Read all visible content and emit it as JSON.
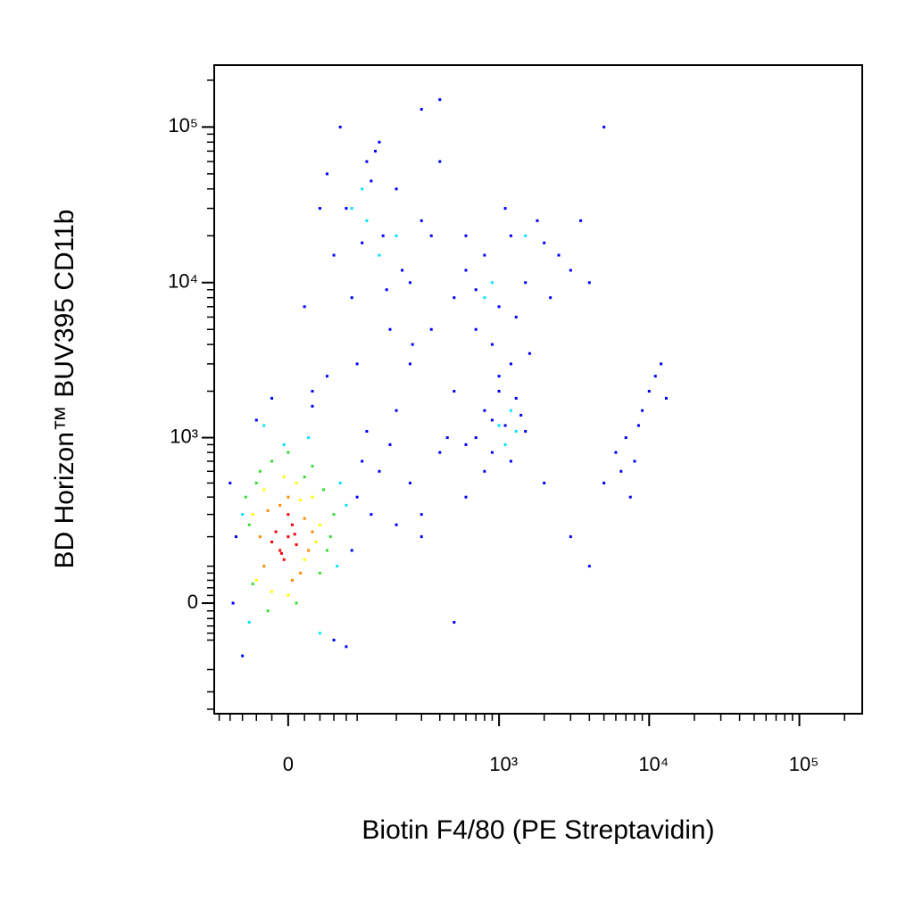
{
  "chart_data": {
    "type": "scatter",
    "xlabel": "Biotin F4/80 (PE Streptavidin)",
    "ylabel": "BD Horizon™ BUV395 CD11b",
    "xscale": "biexponential",
    "yscale": "biexponential",
    "xlim": [
      -110,
      262144
    ],
    "ylim": [
      -430,
      250000
    ],
    "xticks": [
      0,
      {
        "value": 1000,
        "label": "10³"
      },
      {
        "value": 10000,
        "label": "10⁴"
      },
      {
        "value": 100000,
        "label": "10⁵"
      }
    ],
    "yticks": [
      0,
      {
        "value": 1000,
        "label": "10³"
      },
      {
        "value": 10000,
        "label": "10⁴"
      },
      {
        "value": 100000,
        "label": "10⁵"
      }
    ],
    "xminorticks": [
      -100,
      -80,
      -60,
      -40,
      -20,
      20,
      40,
      60,
      80,
      100,
      200,
      300,
      400,
      500,
      600,
      700,
      800,
      900,
      2000,
      3000,
      4000,
      5000,
      6000,
      7000,
      8000,
      9000,
      20000,
      30000,
      40000,
      50000,
      60000,
      70000,
      80000,
      90000,
      200000
    ],
    "yminorticks": [
      -400,
      -300,
      -200,
      -100,
      -80,
      -60,
      -40,
      -20,
      20,
      40,
      60,
      80,
      100,
      200,
      300,
      400,
      500,
      600,
      700,
      800,
      900,
      2000,
      3000,
      4000,
      5000,
      6000,
      7000,
      8000,
      9000,
      20000,
      30000,
      40000,
      50000,
      60000,
      70000,
      80000,
      90000,
      200000
    ],
    "series": [
      {
        "color": "#0000ff",
        "x": [
          -70,
          -80,
          90,
          100,
          130,
          60,
          -60,
          150,
          200,
          250,
          -40,
          30,
          180,
          300,
          80,
          -20,
          50,
          120,
          -75,
          110,
          50,
          80,
          120,
          160,
          200,
          250,
          300,
          60,
          90,
          140,
          180,
          220,
          40,
          70,
          100,
          130,
          350,
          400,
          20,
          110,
          170,
          260,
          30,
          150,
          500,
          600,
          700,
          800,
          1000,
          1200,
          1500,
          1800,
          2000,
          2500,
          3000,
          900,
          1100,
          700,
          1300,
          1600,
          600,
          2200,
          4000,
          3500,
          700,
          800,
          900,
          1000,
          1100,
          1200,
          1300,
          1500,
          800,
          1000,
          1200,
          600,
          1400,
          900,
          5000,
          6000,
          7000,
          8000,
          9000,
          10000,
          12000,
          7500,
          8500,
          6500,
          11000,
          13000,
          300,
          400,
          500,
          250,
          350,
          450,
          600,
          200,
          3000,
          4000,
          2000,
          500,
          400,
          5000,
          300
        ],
        "y": [
          200,
          500,
          150,
          400,
          300,
          -100,
          -150,
          600,
          250,
          500,
          1300,
          1600,
          900,
          200,
          -120,
          1800,
          2500,
          1100,
          0,
          700,
          50000,
          30000,
          60000,
          20000,
          40000,
          10000,
          25000,
          15000,
          8000,
          70000,
          5000,
          12000,
          30000,
          100000,
          3000,
          45000,
          20000,
          60000,
          7000,
          18000,
          9000,
          4000,
          2000,
          80000,
          8000,
          12000,
          5000,
          15000,
          7000,
          20000,
          10000,
          25000,
          18000,
          15000,
          12000,
          4000,
          30000,
          9000,
          6000,
          3500,
          20000,
          8000,
          10000,
          25000,
          1000,
          1500,
          800,
          2000,
          1200,
          700,
          1800,
          1100,
          600,
          2500,
          3000,
          900,
          1400,
          1300,
          500,
          800,
          1000,
          700,
          1500,
          2000,
          3000,
          400,
          1200,
          600,
          2500,
          1800,
          300,
          800,
          2000,
          3000,
          5000,
          1000,
          400,
          1500,
          200,
          100,
          500,
          -50,
          150000,
          100000,
          130000
        ]
      },
      {
        "color": "#00e5ff",
        "x": [
          -60,
          70,
          -50,
          65,
          80,
          -5,
          25,
          120,
          150,
          90,
          200,
          110,
          800,
          1000,
          1200,
          1500,
          1100,
          900,
          1300,
          -30,
          40
        ],
        "y": [
          300,
          500,
          -50,
          100,
          350,
          900,
          1000,
          25000,
          15000,
          30000,
          20000,
          40000,
          8000,
          1200,
          1500,
          20000,
          900,
          10000,
          1100,
          1200,
          -80
        ]
      },
      {
        "color": "#33dd33",
        "x": [
          -50,
          45,
          -45,
          50,
          -35,
          -20,
          30,
          60,
          -55,
          10,
          0,
          40,
          -25,
          20,
          55,
          -40
        ],
        "y": [
          250,
          450,
          50,
          150,
          600,
          700,
          650,
          300,
          400,
          0,
          800,
          80,
          -20,
          550,
          200,
          500
        ]
      },
      {
        "color": "#ffff00",
        "x": [
          -40,
          30,
          -30,
          35,
          -20,
          10,
          40,
          -45,
          20,
          -5,
          0,
          15
        ],
        "y": [
          60,
          400,
          450,
          180,
          30,
          500,
          250,
          300,
          120,
          550,
          20,
          380
        ]
      },
      {
        "color": "#ff8c00",
        "x": [
          -30,
          20,
          -25,
          15,
          -10,
          25,
          0,
          -35,
          30,
          5
        ],
        "y": [
          100,
          280,
          320,
          80,
          350,
          150,
          400,
          200,
          220,
          60
        ]
      },
      {
        "color": "#ff0000",
        "x": [
          -10,
          0,
          -20,
          5,
          -5,
          10,
          -15,
          0,
          -8,
          8
        ],
        "y": [
          150,
          200,
          180,
          250,
          120,
          170,
          220,
          300,
          140,
          210
        ]
      }
    ]
  }
}
